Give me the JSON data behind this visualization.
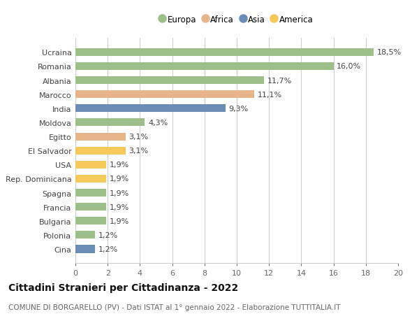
{
  "countries": [
    "Ucraina",
    "Romania",
    "Albania",
    "Marocco",
    "India",
    "Moldova",
    "Egitto",
    "El Salvador",
    "USA",
    "Rep. Dominicana",
    "Spagna",
    "Francia",
    "Bulgaria",
    "Polonia",
    "Cina"
  ],
  "values": [
    18.5,
    16.0,
    11.7,
    11.1,
    9.3,
    4.3,
    3.1,
    3.1,
    1.9,
    1.9,
    1.9,
    1.9,
    1.9,
    1.2,
    1.2
  ],
  "continents": [
    "Europa",
    "Europa",
    "Europa",
    "Africa",
    "Asia",
    "Europa",
    "Africa",
    "America",
    "America",
    "America",
    "Europa",
    "Europa",
    "Europa",
    "Europa",
    "Asia"
  ],
  "colors": {
    "Europa": "#9DC08B",
    "Africa": "#E8B48A",
    "Asia": "#6B8DB5",
    "America": "#F5C95A"
  },
  "legend_order": [
    "Europa",
    "Africa",
    "Asia",
    "America"
  ],
  "xlim": [
    0,
    20
  ],
  "xticks": [
    0,
    2,
    4,
    6,
    8,
    10,
    12,
    14,
    16,
    18,
    20
  ],
  "title": "Cittadini Stranieri per Cittadinanza - 2022",
  "subtitle": "COMUNE DI BORGARELLO (PV) - Dati ISTAT al 1° gennaio 2022 - Elaborazione TUTTITALIA.IT",
  "bg_color": "#ffffff",
  "grid_color": "#cccccc",
  "bar_height": 0.55,
  "label_fontsize": 8.0,
  "value_fontsize": 8.0,
  "title_fontsize": 10.0,
  "subtitle_fontsize": 7.5
}
